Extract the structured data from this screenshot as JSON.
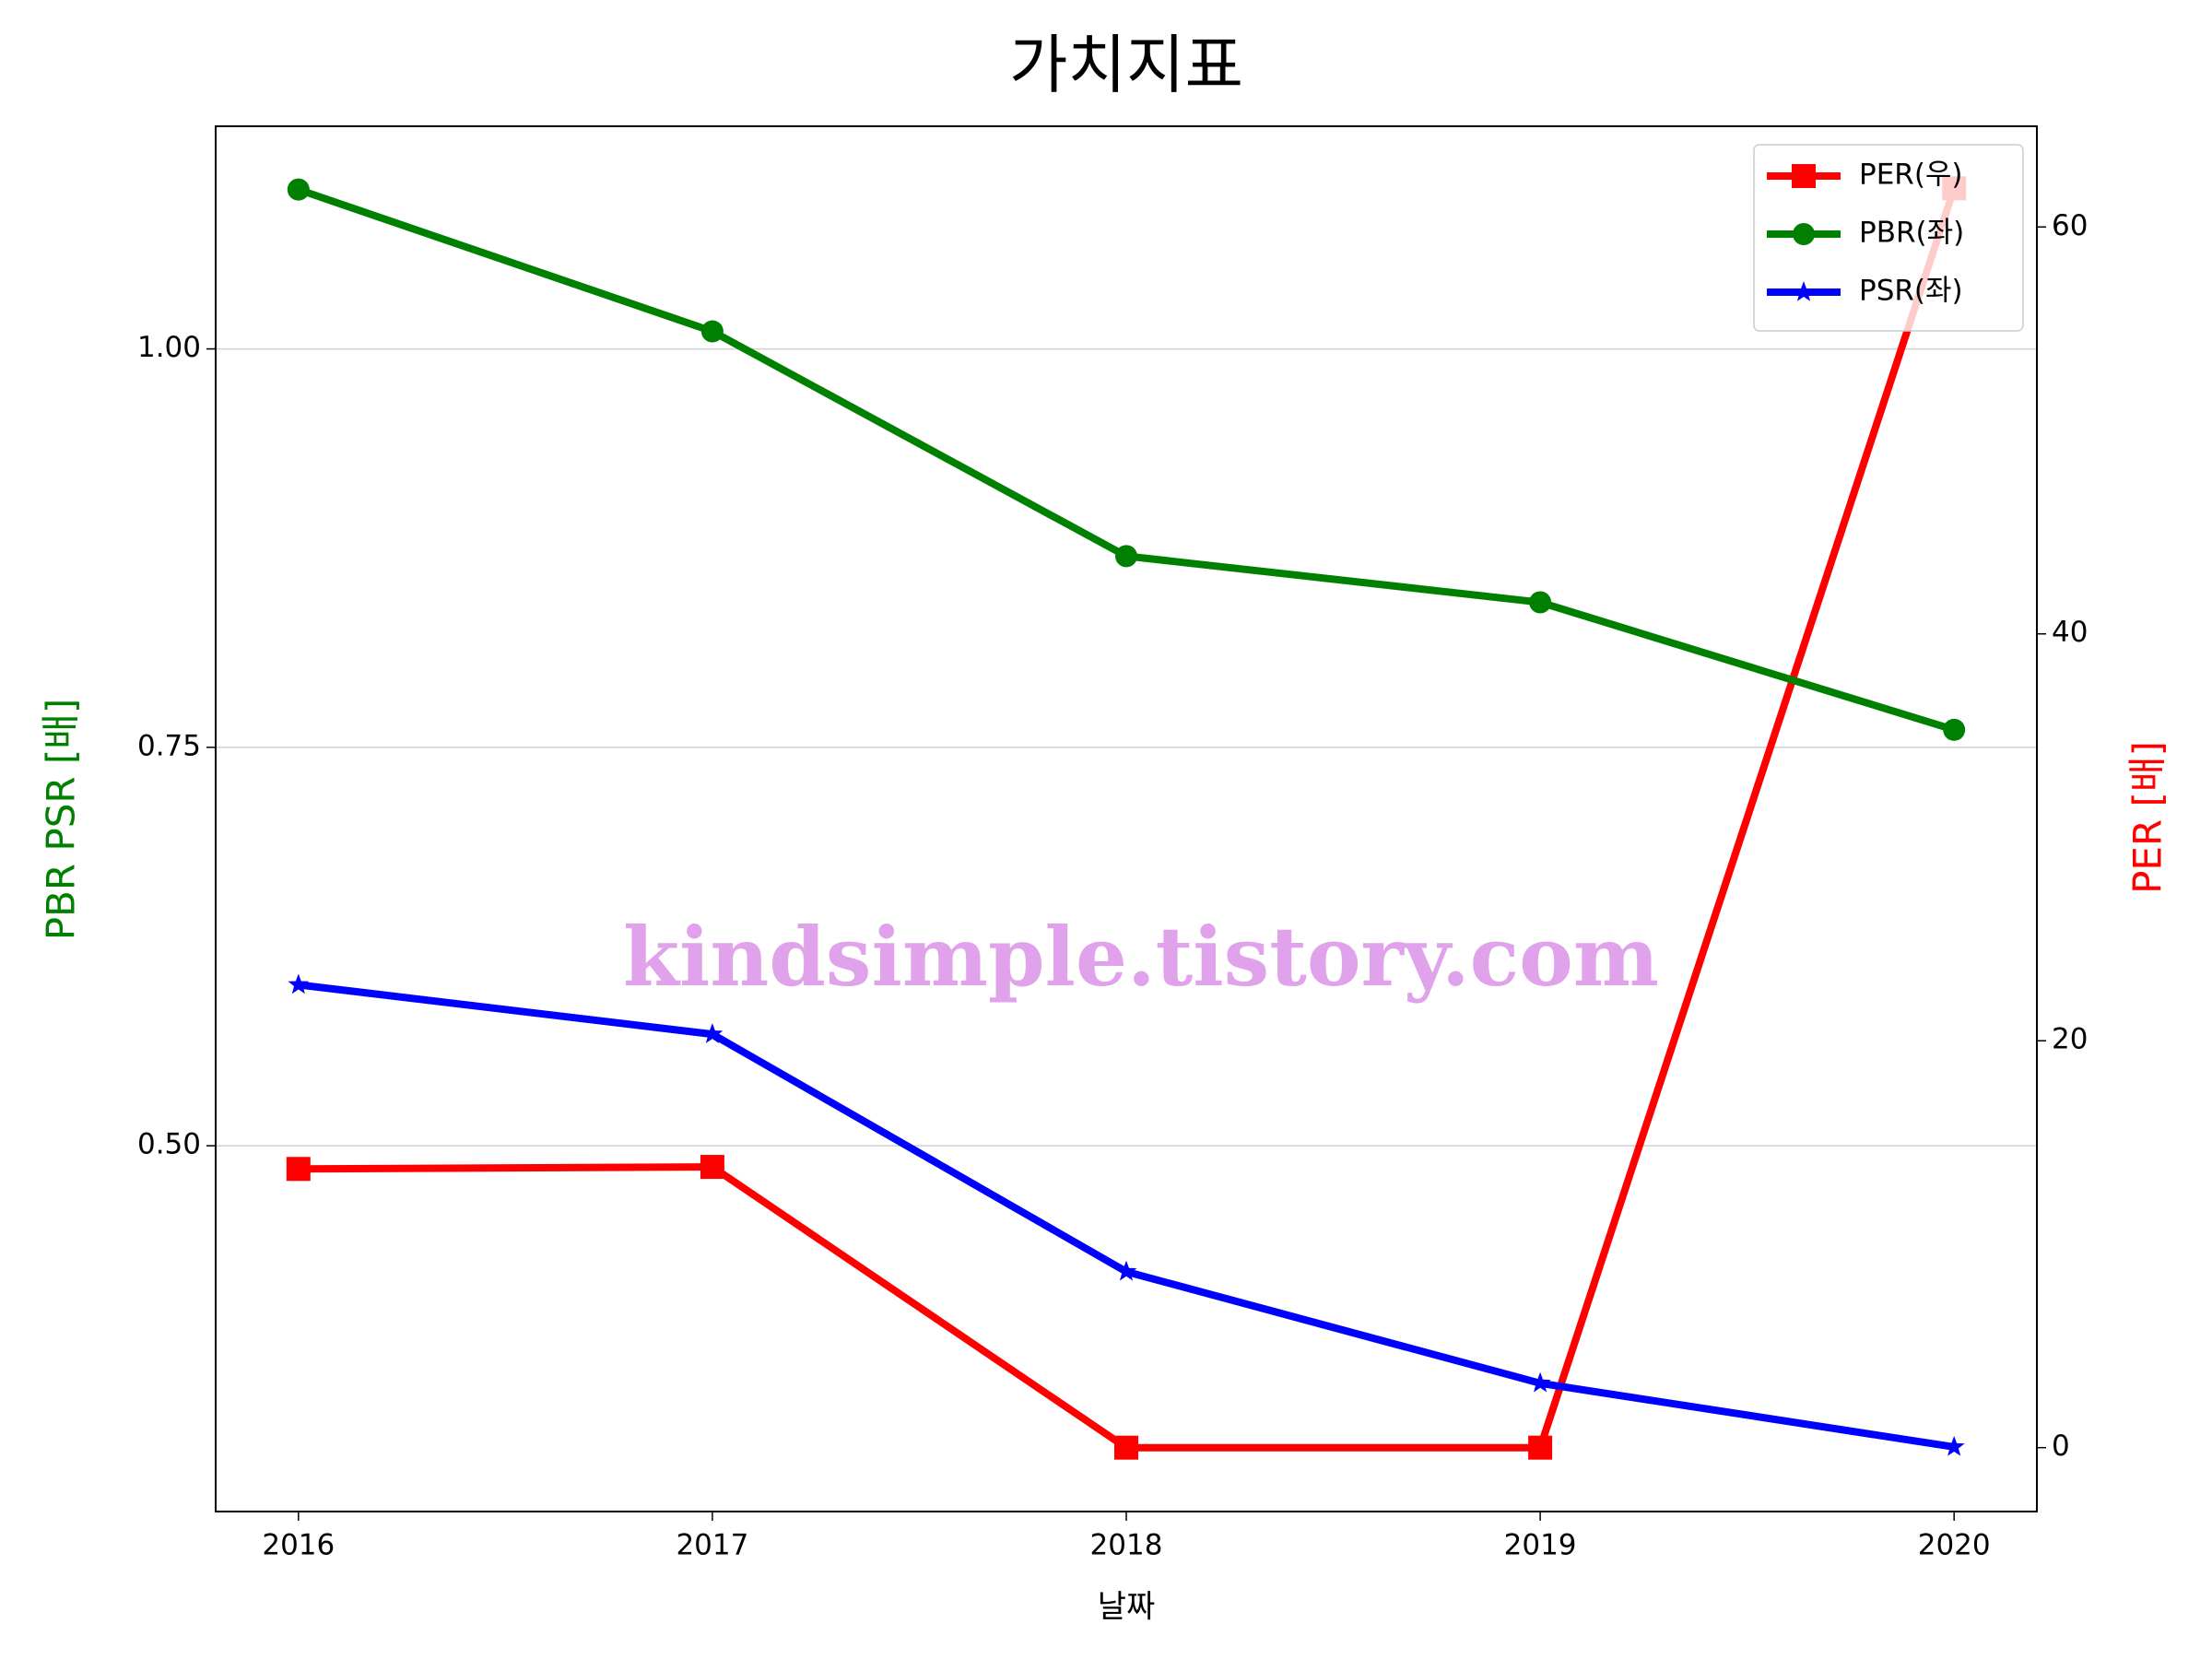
{
  "chart_data": {
    "type": "line",
    "title": "가치지표",
    "xlabel": "날짜",
    "ylabel": "PBR PSR [배]",
    "y2label": "PER [배]",
    "ylabel_color": "green",
    "y2label_color": "red",
    "watermark": "kindsimple.tistory.com",
    "x": [
      2016,
      2017,
      2018,
      2019,
      2020
    ],
    "xlim": [
      2015.8,
      2020.2
    ],
    "xticks": [
      2016,
      2017,
      2018,
      2019,
      2020
    ],
    "ylim": [
      0.2705,
      1.1397
    ],
    "yticks": [
      {
        "value": 0.5,
        "label": "0.50"
      },
      {
        "value": 0.75,
        "label": "0.75"
      },
      {
        "value": 1.0,
        "label": "1.00"
      }
    ],
    "y2lim": [
      -3.14,
      64.95
    ],
    "y2ticks": [
      0,
      20,
      40,
      60
    ],
    "grid": true,
    "legend": "upper right",
    "series": [
      {
        "name": "PER(우)",
        "color": "red",
        "marker": "square",
        "axis": "y2",
        "values": [
          13.7,
          13.8,
          0,
          0,
          61.9
        ]
      },
      {
        "name": "PBR(좌)",
        "color": "green",
        "marker": "circle",
        "axis": "y",
        "values": [
          1.1,
          1.011,
          0.87,
          0.841,
          0.761
        ]
      },
      {
        "name": "PSR(좌)",
        "color": "blue",
        "marker": "star",
        "axis": "y",
        "values": [
          0.601,
          0.57,
          0.421,
          0.351,
          0.311
        ]
      }
    ]
  }
}
